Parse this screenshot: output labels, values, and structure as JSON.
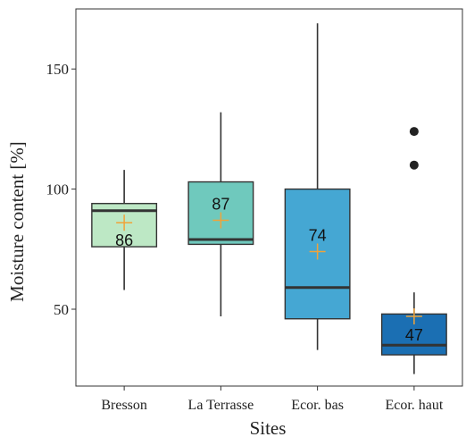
{
  "chart_data": {
    "type": "boxplot",
    "xlabel": "Sites",
    "ylabel": "Moisture content [%]",
    "ylim": [
      18,
      175
    ],
    "yticks": [
      50,
      100,
      150
    ],
    "categories": [
      "Bresson",
      "La Terrasse",
      "Ecor. bas",
      "Ecor. haut"
    ],
    "boxes": [
      {
        "category": "Bresson",
        "min": 58,
        "q1": 76,
        "median": 91,
        "q3": 94,
        "max": 108,
        "mean": 86,
        "mean_label": "86",
        "outliers": [],
        "color": "#bde8c5"
      },
      {
        "category": "La Terrasse",
        "min": 47,
        "q1": 77,
        "median": 79,
        "q3": 103,
        "max": 132,
        "mean": 87,
        "mean_label": "87",
        "outliers": [],
        "color": "#6fc9bd"
      },
      {
        "category": "Ecor. bas",
        "min": 33,
        "q1": 46,
        "median": 59,
        "q3": 100,
        "max": 169,
        "mean": 74,
        "mean_label": "74",
        "outliers": [],
        "color": "#45a7d3"
      },
      {
        "category": "Ecor. haut",
        "min": 23,
        "q1": 31,
        "median": 35,
        "q3": 48,
        "max": 57,
        "mean": 47,
        "mean_label": "47",
        "outliers": [
          110,
          124
        ],
        "color": "#1b6fb3"
      }
    ],
    "mean_marker_color": "#f0a33a",
    "grid": false,
    "legend": "none"
  }
}
